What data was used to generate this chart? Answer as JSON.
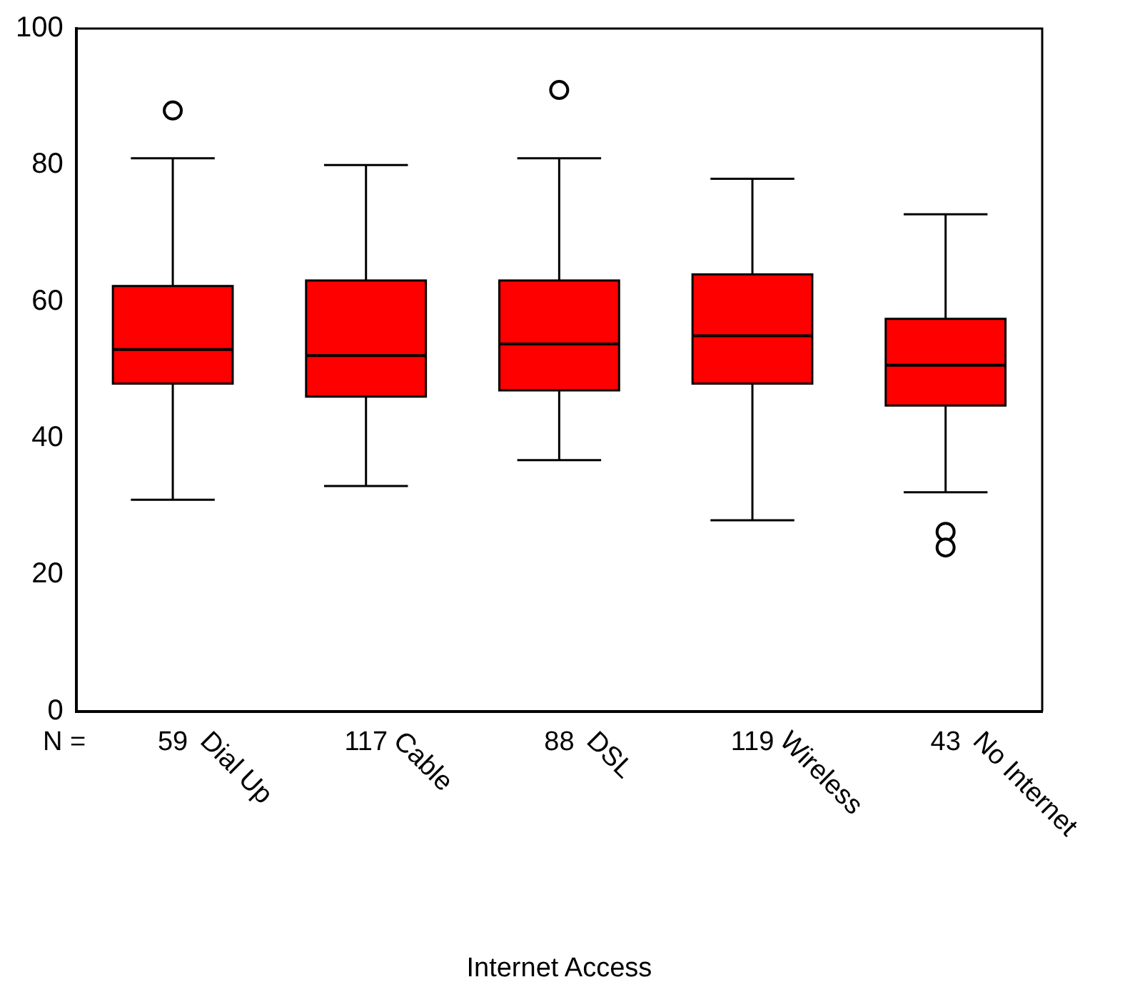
{
  "chart_data": {
    "type": "box",
    "xlabel": "Internet Access",
    "categories": [
      "Dial Up",
      "Cable",
      "DSL",
      "Wireless",
      "No Internet"
    ],
    "color": "#ff0000",
    "boxes": [
      {
        "low": 31,
        "q1": 48,
        "median": 53,
        "q3": 62.3,
        "high": 81,
        "outliers": [
          88
        ]
      },
      {
        "low": 33,
        "q1": 46.1,
        "median": 52.1,
        "q3": 63.1,
        "high": 80
      },
      {
        "low": 36.8,
        "q1": 47,
        "median": 53.8,
        "q3": 63.1,
        "high": 81,
        "outliers": [
          91
        ]
      },
      {
        "low": 28,
        "q1": 48,
        "median": 55,
        "q3": 64,
        "high": 78
      },
      {
        "low": 32.1,
        "q1": 44.8,
        "median": 50.7,
        "q3": 57.5,
        "high": 72.8,
        "outliers": [
          26.3,
          24
        ]
      }
    ],
    "ylim": [
      0,
      100
    ],
    "yticks": [
      0,
      20,
      40,
      60,
      80,
      100
    ],
    "marker": "circle",
    "annotations": [
      "N =",
      "59",
      "117",
      "88",
      "119",
      "43"
    ]
  }
}
